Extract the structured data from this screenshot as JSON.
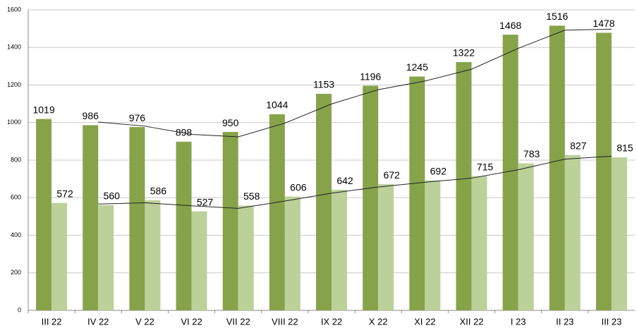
{
  "chart_data": {
    "type": "bar",
    "categories": [
      "III 22",
      "IV 22",
      "V 22",
      "VI 22",
      "VII 22",
      "VIII 22",
      "IX 22",
      "X 22",
      "XI 22",
      "XII 22",
      "I 23",
      "II 23",
      "III 23"
    ],
    "series": [
      {
        "color": "#86a34a",
        "values": [
          1019,
          986,
          976,
          898,
          950,
          1044,
          1153,
          1196,
          1245,
          1322,
          1468,
          1516,
          1478
        ]
      },
      {
        "color": "#bcd199",
        "values": [
          572,
          560,
          586,
          527,
          558,
          606,
          642,
          672,
          692,
          715,
          783,
          827,
          815
        ]
      }
    ],
    "trendlines": [
      {
        "color": "#222222",
        "values": [
          null,
          1003,
          981,
          937,
          924,
          997,
          1099,
          1175,
          1221,
          1284,
          1395,
          1492,
          1497
        ]
      },
      {
        "color": "#222222",
        "values": [
          null,
          566,
          573,
          557,
          543,
          582,
          624,
          657,
          682,
          704,
          749,
          805,
          821
        ]
      }
    ],
    "ylim": [
      0,
      1600
    ],
    "yticks": [
      0,
      200,
      400,
      600,
      800,
      1000,
      1200,
      1400,
      1600
    ],
    "grid": true
  }
}
